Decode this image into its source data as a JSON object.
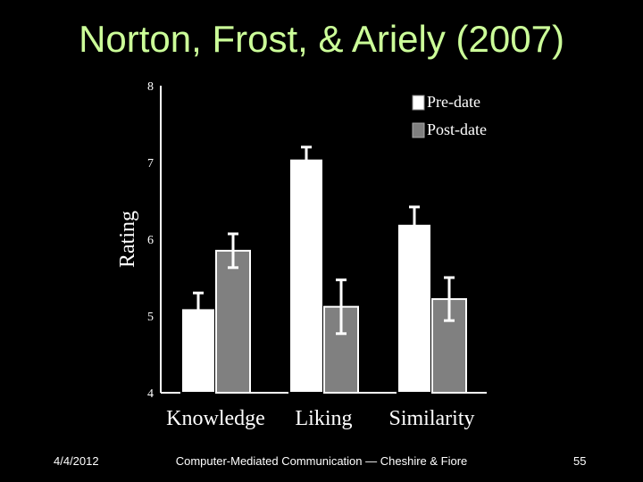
{
  "slide": {
    "title": "Norton, Frost, & Ariely (2007)",
    "footer_date": "4/4/2012",
    "footer_center": "Computer-Mediated Communication — Cheshire & Fiore",
    "page_number": "55"
  },
  "chart_data": {
    "type": "bar",
    "categories": [
      "Knowledge",
      "Liking",
      "Similarity"
    ],
    "series": [
      {
        "name": "Pre-date",
        "values": [
          5.1,
          7.05,
          6.2
        ],
        "errors": [
          0.2,
          0.15,
          0.22
        ],
        "color": "#ffffff"
      },
      {
        "name": "Post-date",
        "values": [
          5.85,
          5.12,
          5.22
        ],
        "errors": [
          0.22,
          0.35,
          0.28
        ],
        "color": "#808080"
      }
    ],
    "ylabel": "Rating",
    "ylim": [
      4,
      8
    ],
    "yticks": [
      "4",
      "5",
      "6",
      "7",
      "8"
    ],
    "legend_position": "top-right",
    "grid": false
  }
}
